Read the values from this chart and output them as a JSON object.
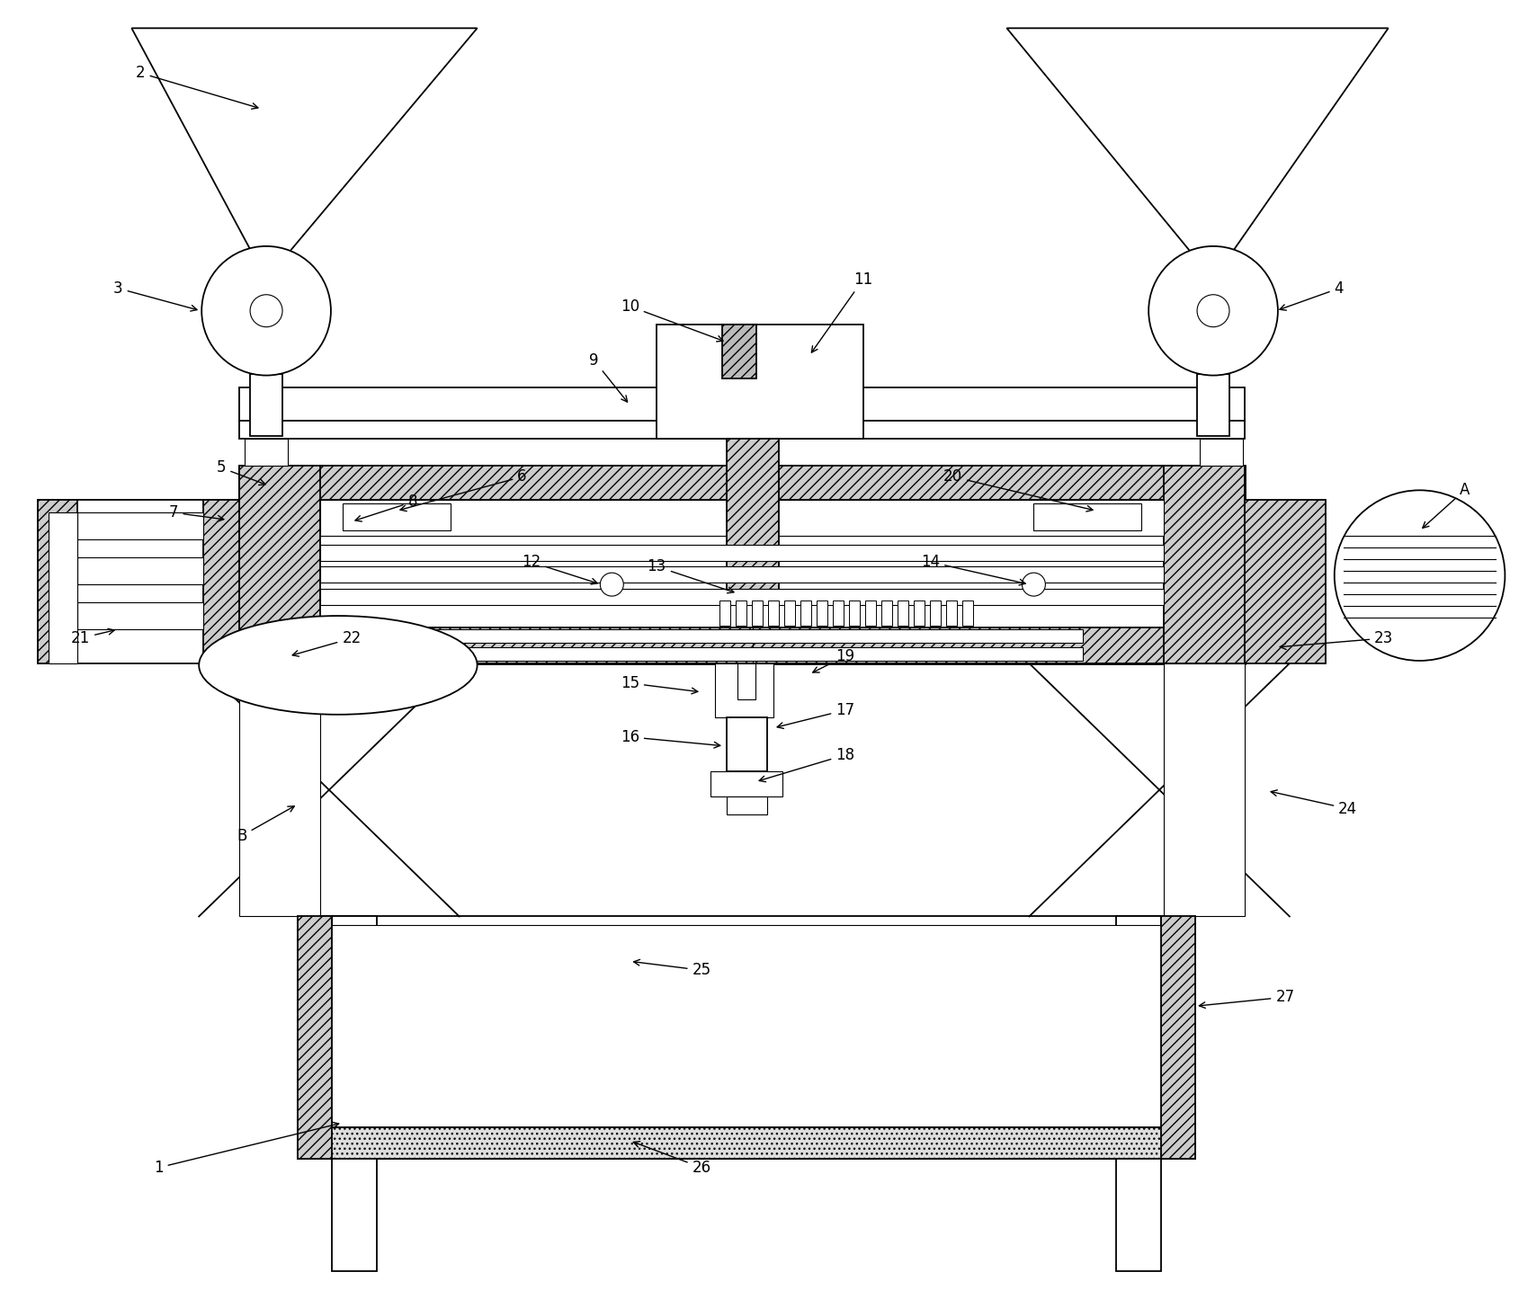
{
  "bg_color": "#ffffff",
  "line_color": "#000000",
  "fig_width": 16.9,
  "fig_height": 14.35,
  "lw_main": 1.3,
  "lw_thick": 2.0,
  "lw_thin": 0.8
}
